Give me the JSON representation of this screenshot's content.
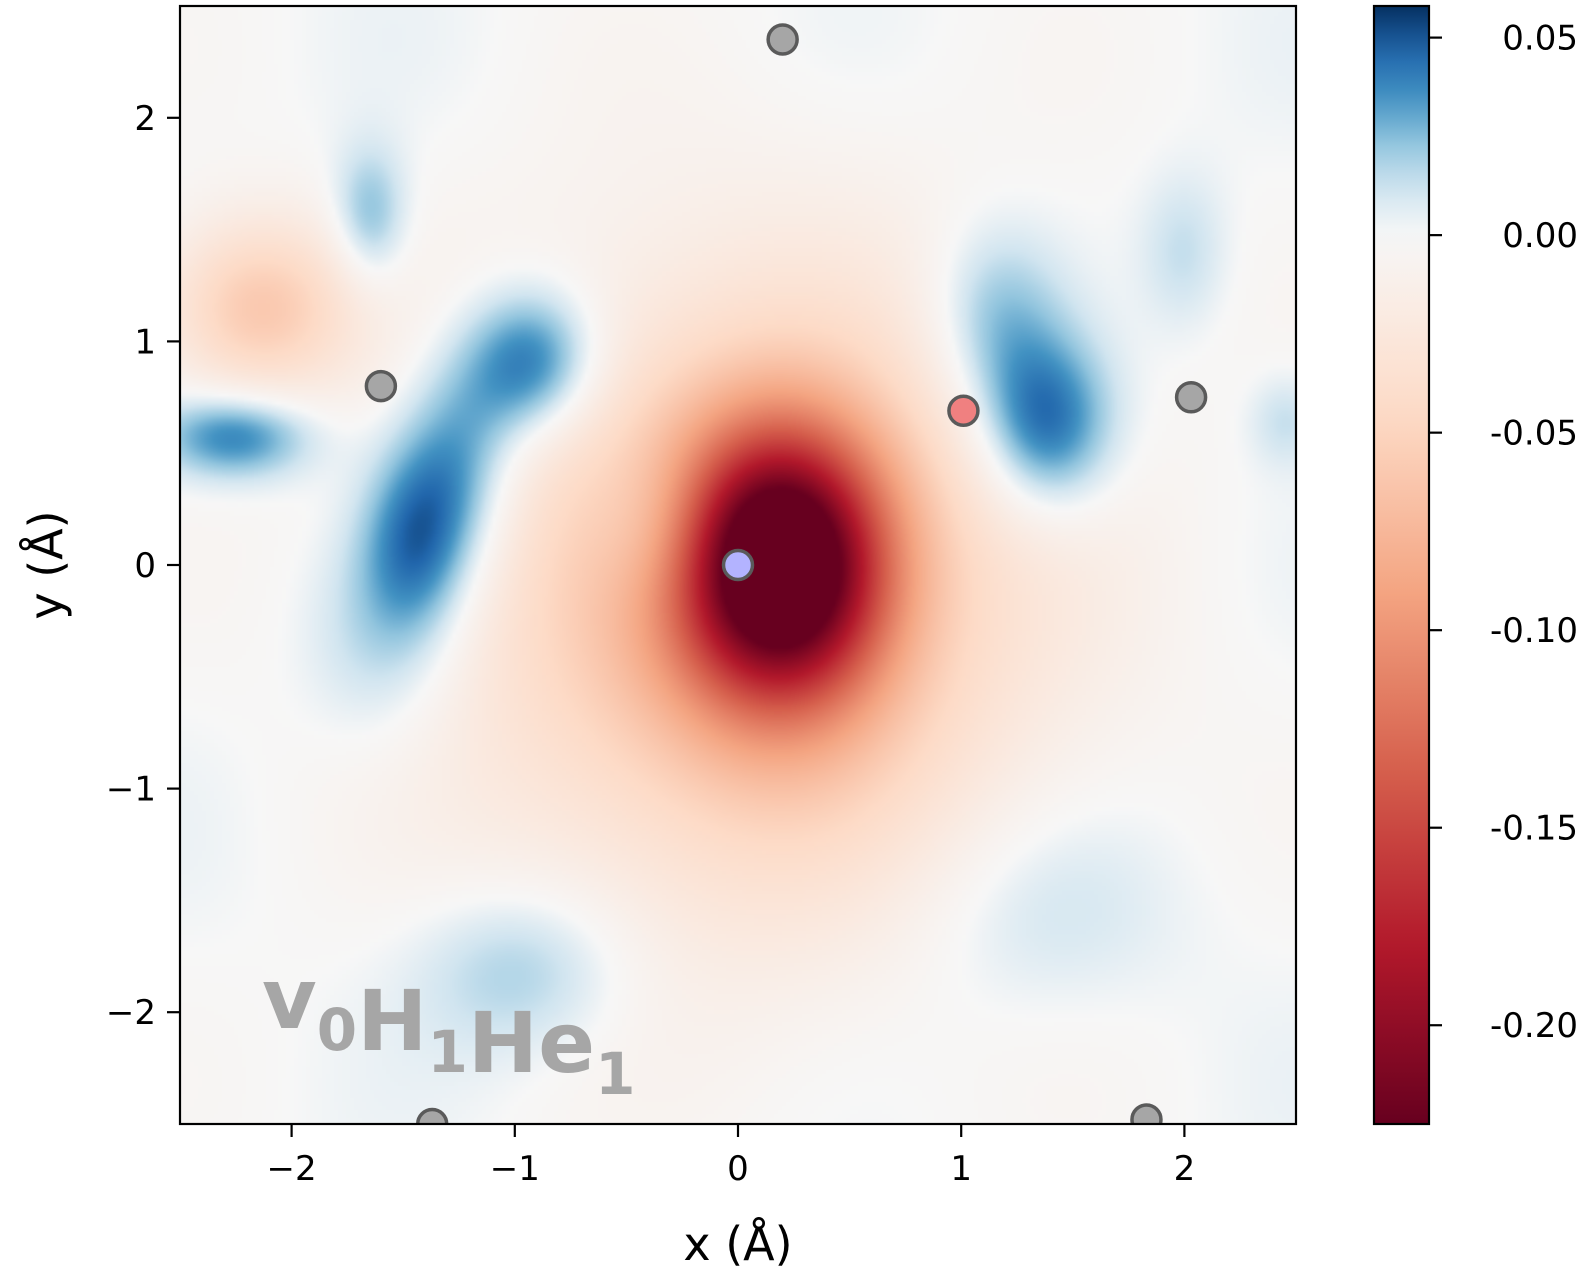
{
  "chart_data": {
    "type": "heatmap",
    "title": "",
    "xlabel": "x (Å)",
    "ylabel": "y (Å)",
    "xlim": [
      -2.5,
      2.5
    ],
    "ylim": [
      -2.5,
      2.5
    ],
    "x_ticks": [
      -2,
      -1,
      0,
      1,
      2
    ],
    "y_ticks": [
      -2,
      -1,
      0,
      1,
      2
    ],
    "x_tick_labels": [
      "−2",
      "−1",
      "0",
      "1",
      "2"
    ],
    "y_tick_labels": [
      "−2",
      "−1",
      "0",
      "1",
      "2"
    ],
    "grid": false,
    "colormap": "RdBu",
    "colorbar": {
      "range": [
        -0.225,
        0.058
      ],
      "ticks": [
        0.05,
        0.0,
        -0.05,
        -0.1,
        -0.15,
        -0.2
      ],
      "tick_labels": [
        "0.05",
        "0.00",
        "-0.05",
        "-0.10",
        "-0.15",
        "-0.20"
      ],
      "position": "right"
    },
    "annotation": {
      "parts": [
        {
          "text": "v",
          "sub": "0"
        },
        {
          "text": "H",
          "sub": "1"
        },
        {
          "text": "He",
          "sub": "1"
        }
      ],
      "placement": "bottom-left",
      "color": "#a6a6a6"
    },
    "field_features": [
      {
        "x": 0.2,
        "y": 0.0,
        "value": -0.22,
        "sx": 0.32,
        "sy": 0.42
      },
      {
        "x": 0.05,
        "y": -0.15,
        "value": -0.08,
        "sx": 0.85,
        "sy": 0.95
      },
      {
        "x": -0.35,
        "y": 0.15,
        "value": 0.025,
        "sx": 0.2,
        "sy": 0.25
      },
      {
        "x": -0.92,
        "y": 0.9,
        "value": 0.055,
        "sx": 0.22,
        "sy": 0.24
      },
      {
        "x": -1.25,
        "y": 0.45,
        "value": 0.04,
        "sx": 0.2,
        "sy": 0.35
      },
      {
        "x": -1.45,
        "y": 0.1,
        "value": 0.04,
        "sx": 0.18,
        "sy": 0.3
      },
      {
        "x": -1.6,
        "y": -0.35,
        "value": 0.02,
        "sx": 0.25,
        "sy": 0.35
      },
      {
        "x": -2.25,
        "y": 0.58,
        "value": 0.045,
        "sx": 0.25,
        "sy": 0.14
      },
      {
        "x": -2.15,
        "y": 1.15,
        "value": -0.06,
        "sx": 0.3,
        "sy": 0.28
      },
      {
        "x": -1.65,
        "y": 1.55,
        "value": 0.03,
        "sx": 0.12,
        "sy": 0.22
      },
      {
        "x": 1.38,
        "y": 0.62,
        "value": 0.055,
        "sx": 0.22,
        "sy": 0.28
      },
      {
        "x": 1.15,
        "y": 1.1,
        "value": 0.03,
        "sx": 0.22,
        "sy": 0.3
      },
      {
        "x": 2.0,
        "y": 1.4,
        "value": 0.015,
        "sx": 0.14,
        "sy": 0.25
      },
      {
        "x": -0.95,
        "y": -1.8,
        "value": 0.025,
        "sx": 0.35,
        "sy": 0.28
      },
      {
        "x": 1.3,
        "y": -1.55,
        "value": 0.015,
        "sx": 0.45,
        "sy": 0.35
      },
      {
        "x": 2.45,
        "y": 0.65,
        "value": 0.015,
        "sx": 0.12,
        "sy": 0.15
      }
    ],
    "atoms": [
      {
        "x": 0.2,
        "y": 2.35,
        "color": "#a6a6a6"
      },
      {
        "x": -1.6,
        "y": 0.8,
        "color": "#a6a6a6"
      },
      {
        "x": 2.03,
        "y": 0.75,
        "color": "#a6a6a6"
      },
      {
        "x": 1.01,
        "y": 0.69,
        "color": "#f08080"
      },
      {
        "x": 0.0,
        "y": 0.0,
        "color": "#b3b3ff"
      },
      {
        "x": -1.37,
        "y": -2.5,
        "color": "#a6a6a6"
      },
      {
        "x": 1.83,
        "y": -2.48,
        "color": "#a6a6a6"
      }
    ]
  }
}
